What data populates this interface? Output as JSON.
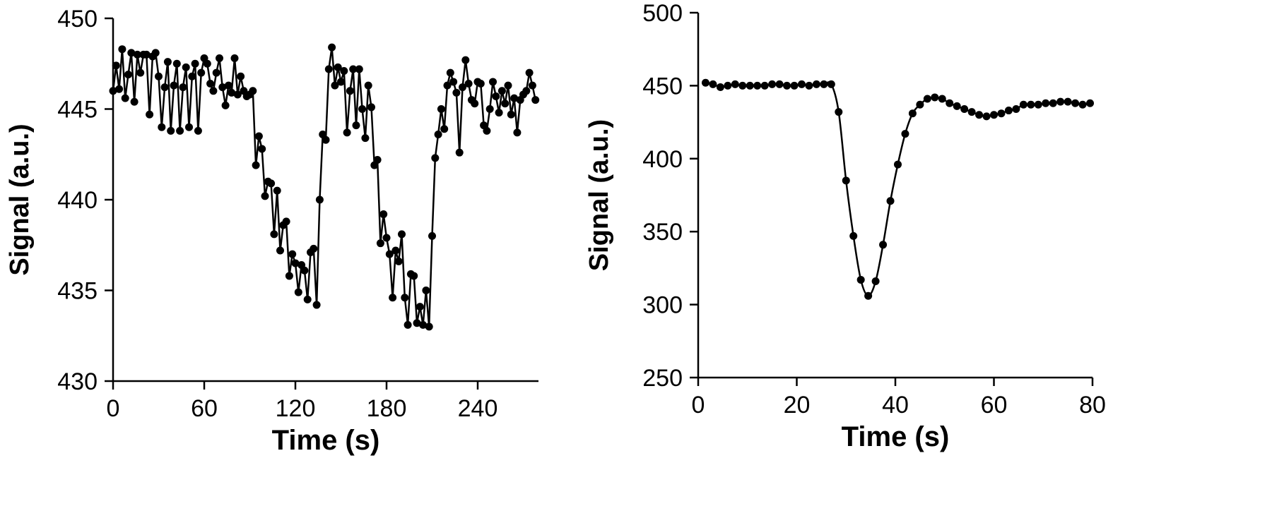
{
  "chart_data": [
    {
      "type": "line",
      "xlabel": "Time (s)",
      "ylabel": "Signal (a.u.)",
      "xlim": [
        0,
        280
      ],
      "ylim": [
        430,
        450
      ],
      "xticks": [
        0,
        60,
        120,
        180,
        240
      ],
      "yticks": [
        430,
        435,
        440,
        445,
        450
      ],
      "grid": false,
      "markers": true,
      "x": [
        0,
        2,
        4,
        6,
        8,
        10,
        12,
        14,
        16,
        18,
        20,
        22,
        24,
        26,
        28,
        30,
        32,
        34,
        36,
        38,
        40,
        42,
        44,
        46,
        48,
        50,
        52,
        54,
        56,
        58,
        60,
        62,
        64,
        66,
        68,
        70,
        72,
        74,
        76,
        78,
        80,
        82,
        84,
        86,
        88,
        90,
        92,
        94,
        96,
        98,
        100,
        102,
        104,
        106,
        108,
        110,
        112,
        114,
        116,
        118,
        120,
        122,
        124,
        126,
        128,
        130,
        132,
        134,
        136,
        138,
        140,
        142,
        144,
        146,
        148,
        150,
        152,
        154,
        156,
        158,
        160,
        162,
        164,
        166,
        168,
        170,
        172,
        174,
        176,
        178,
        180,
        182,
        184,
        186,
        188,
        190,
        192,
        194,
        196,
        198,
        200,
        202,
        204,
        206,
        208,
        210,
        212,
        214,
        216,
        218,
        220,
        222,
        224,
        226,
        228,
        230,
        232,
        234,
        236,
        238,
        240,
        242,
        244,
        246,
        248,
        250,
        252,
        254,
        256,
        258,
        260,
        262,
        264,
        266,
        268,
        270,
        272,
        274,
        276,
        278
      ],
      "values": [
        446.0,
        447.4,
        446.1,
        448.3,
        445.6,
        446.9,
        448.1,
        445.4,
        448.0,
        447.0,
        448.0,
        448.0,
        444.7,
        447.9,
        448.1,
        446.8,
        444.0,
        446.2,
        447.6,
        443.8,
        446.3,
        447.5,
        443.8,
        446.2,
        447.3,
        444.0,
        446.8,
        447.5,
        443.8,
        447.0,
        447.8,
        447.5,
        446.4,
        446.0,
        447.0,
        447.8,
        446.2,
        445.2,
        446.3,
        445.9,
        447.8,
        445.8,
        446.8,
        446.0,
        445.7,
        445.8,
        446.0,
        441.9,
        443.5,
        442.8,
        440.2,
        441.0,
        440.9,
        438.1,
        440.5,
        437.2,
        438.6,
        438.8,
        435.8,
        437.0,
        436.5,
        434.9,
        436.4,
        436.1,
        434.5,
        437.1,
        437.3,
        434.2,
        440.0,
        443.6,
        443.3,
        447.2,
        448.4,
        446.3,
        447.3,
        446.5,
        447.1,
        443.7,
        446.0,
        447.2,
        444.1,
        447.2,
        445.0,
        443.4,
        446.3,
        445.1,
        441.9,
        442.2,
        437.6,
        439.2,
        437.9,
        437.0,
        434.6,
        437.2,
        436.6,
        438.1,
        434.6,
        433.1,
        435.9,
        435.8,
        433.2,
        434.1,
        433.1,
        435.0,
        433.0,
        438.0,
        442.3,
        443.6,
        445.0,
        443.9,
        446.3,
        447.0,
        446.5,
        445.9,
        442.6,
        446.2,
        447.7,
        446.4,
        445.5,
        445.3,
        446.5,
        446.4,
        444.1,
        443.8,
        445.0,
        446.5,
        445.7,
        444.8,
        446.0,
        445.3,
        446.3,
        444.7,
        445.6,
        443.7,
        445.5,
        445.8,
        446.0,
        447.0,
        446.3,
        445.5
      ]
    },
    {
      "type": "line",
      "xlabel": "Time (s)",
      "ylabel": "Signal (a.u.)",
      "xlim": [
        0,
        80
      ],
      "ylim": [
        250,
        500
      ],
      "xticks": [
        0,
        20,
        40,
        60,
        80
      ],
      "yticks": [
        250,
        300,
        350,
        400,
        450,
        500
      ],
      "grid": false,
      "markers": true,
      "smooth": true,
      "x": [
        1.5,
        3,
        4.5,
        6,
        7.5,
        9,
        10.5,
        12,
        13.5,
        15,
        16.5,
        18,
        19.5,
        21,
        22.5,
        24,
        25.5,
        27,
        28.5,
        30,
        31.5,
        33,
        34.5,
        36,
        37.5,
        39,
        40.5,
        42,
        43.5,
        45,
        46.5,
        48,
        49.5,
        51,
        52.5,
        54,
        55.5,
        57,
        58.5,
        60,
        61.5,
        63,
        64.5,
        66,
        67.5,
        69,
        70.5,
        72,
        73.5,
        75,
        76.5,
        78,
        79.5
      ],
      "values": [
        452,
        451,
        449,
        450,
        451,
        450,
        450,
        450,
        450,
        451,
        451,
        450,
        450,
        451,
        450,
        451,
        451,
        451,
        432,
        385,
        347,
        317,
        306,
        316,
        341,
        371,
        396,
        417,
        431,
        437,
        441,
        442,
        441,
        438,
        436,
        434,
        432,
        430,
        429,
        430,
        431,
        433,
        434,
        437,
        437,
        437,
        438,
        438,
        439,
        439,
        438,
        437,
        438
      ]
    }
  ]
}
